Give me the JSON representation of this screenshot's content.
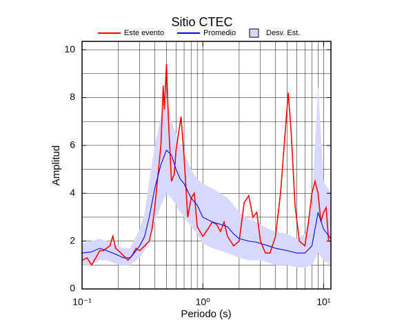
{
  "chart_data": {
    "type": "line",
    "title": "Sitio CTEC",
    "xlabel": "Periodo (s)",
    "ylabel": "Amplitud",
    "xscale": "log",
    "xlim": [
      0.1,
      11.5
    ],
    "ylim": [
      0,
      10.35
    ],
    "xticks": [
      {
        "value": 0.1,
        "label": "10⁻¹"
      },
      {
        "value": 1,
        "label": "10⁰"
      },
      {
        "value": 10,
        "label": "10¹"
      }
    ],
    "yticks": [
      0,
      2,
      4,
      6,
      8,
      10
    ],
    "xgrid": [
      0.2,
      0.3,
      0.4,
      0.5,
      0.6,
      0.7,
      0.8,
      0.9,
      1,
      2,
      3,
      4,
      5,
      6,
      7,
      8,
      9,
      10
    ],
    "ygrid": [
      1,
      2,
      3,
      4,
      5,
      6,
      7,
      8,
      9,
      10
    ],
    "legend": "top",
    "series": [
      {
        "name": "Este evento",
        "color": "#ff0000",
        "x": [
          0.1,
          0.11,
          0.12,
          0.13,
          0.14,
          0.15,
          0.17,
          0.18,
          0.19,
          0.2,
          0.22,
          0.24,
          0.26,
          0.28,
          0.3,
          0.33,
          0.36,
          0.38,
          0.4,
          0.42,
          0.45,
          0.47,
          0.48,
          0.5,
          0.52,
          0.55,
          0.58,
          0.6,
          0.63,
          0.66,
          0.7,
          0.75,
          0.8,
          0.85,
          0.9,
          1.0,
          1.1,
          1.2,
          1.3,
          1.4,
          1.5,
          1.6,
          1.8,
          2.0,
          2.2,
          2.4,
          2.6,
          2.8,
          3.0,
          3.3,
          3.6,
          4.0,
          4.4,
          4.8,
          5.1,
          5.4,
          5.8,
          6.3,
          7.0,
          7.5,
          8.0,
          8.5,
          9.0,
          9.5,
          10.0,
          10.5,
          11.0,
          11.5
        ],
        "values": [
          1.2,
          1.3,
          1.0,
          1.3,
          1.6,
          1.6,
          1.8,
          2.2,
          1.7,
          1.6,
          1.4,
          1.2,
          1.4,
          1.7,
          1.6,
          1.8,
          2.0,
          2.5,
          3.4,
          4.5,
          6.0,
          8.5,
          7.5,
          9.4,
          7.0,
          4.5,
          4.8,
          5.8,
          6.5,
          7.2,
          5.5,
          3.0,
          3.8,
          4.0,
          2.6,
          2.2,
          2.5,
          2.8,
          2.7,
          2.4,
          2.8,
          2.2,
          1.8,
          2.0,
          3.6,
          3.9,
          3.0,
          3.2,
          2.0,
          1.5,
          1.5,
          2.2,
          4.0,
          6.5,
          8.2,
          6.5,
          3.5,
          2.0,
          1.8,
          2.8,
          4.0,
          4.5,
          4.0,
          2.8,
          3.2,
          3.4,
          2.0,
          2.0
        ]
      },
      {
        "name": "Promedio",
        "color": "#0000ff",
        "x": [
          0.1,
          0.12,
          0.14,
          0.16,
          0.18,
          0.2,
          0.22,
          0.25,
          0.28,
          0.3,
          0.33,
          0.36,
          0.4,
          0.45,
          0.5,
          0.55,
          0.6,
          0.65,
          0.7,
          0.8,
          0.9,
          1.0,
          1.2,
          1.4,
          1.6,
          1.8,
          2.0,
          2.4,
          2.8,
          3.0,
          3.5,
          4.0,
          5.0,
          6.0,
          7.0,
          8.0,
          9.0,
          10.0,
          11.5
        ],
        "values": [
          1.5,
          1.55,
          1.7,
          1.6,
          1.5,
          1.4,
          1.3,
          1.3,
          1.6,
          1.8,
          2.2,
          3.0,
          4.2,
          5.2,
          5.8,
          5.6,
          5.0,
          4.6,
          4.4,
          3.8,
          3.5,
          3.0,
          2.8,
          2.7,
          2.6,
          2.3,
          2.1,
          2.0,
          1.95,
          1.9,
          1.8,
          1.7,
          1.6,
          1.5,
          1.5,
          1.8,
          3.2,
          2.5,
          2.1
        ]
      },
      {
        "name": "Desv. Est.",
        "color": "#d8d8ff",
        "x": [
          0.1,
          0.12,
          0.14,
          0.16,
          0.18,
          0.2,
          0.22,
          0.25,
          0.28,
          0.3,
          0.33,
          0.36,
          0.4,
          0.45,
          0.5,
          0.55,
          0.6,
          0.65,
          0.7,
          0.8,
          0.9,
          1.0,
          1.2,
          1.4,
          1.6,
          1.8,
          2.0,
          2.4,
          2.8,
          3.0,
          3.5,
          4.0,
          5.0,
          6.0,
          7.0,
          8.0,
          9.0,
          10.0,
          11.5
        ],
        "low": [
          1.0,
          1.0,
          1.2,
          1.2,
          1.1,
          1.0,
          1.0,
          1.0,
          1.2,
          1.3,
          1.6,
          2.0,
          2.8,
          3.5,
          4.0,
          3.8,
          3.5,
          3.2,
          3.0,
          2.6,
          2.3,
          1.9,
          1.7,
          1.6,
          1.5,
          1.4,
          1.3,
          1.2,
          1.2,
          1.2,
          1.1,
          1.0,
          1.0,
          0.9,
          0.9,
          1.0,
          1.5,
          1.2,
          1.0
        ],
        "high": [
          1.9,
          2.0,
          2.1,
          2.0,
          1.9,
          1.8,
          1.7,
          1.7,
          2.2,
          2.5,
          3.2,
          4.5,
          6.0,
          7.2,
          8.0,
          7.0,
          6.5,
          6.0,
          5.7,
          5.0,
          4.6,
          4.4,
          4.2,
          4.0,
          3.8,
          3.5,
          3.2,
          2.9,
          2.8,
          2.7,
          2.5,
          2.4,
          2.3,
          2.1,
          2.3,
          3.5,
          8.5,
          4.5,
          4.0
        ]
      }
    ]
  }
}
